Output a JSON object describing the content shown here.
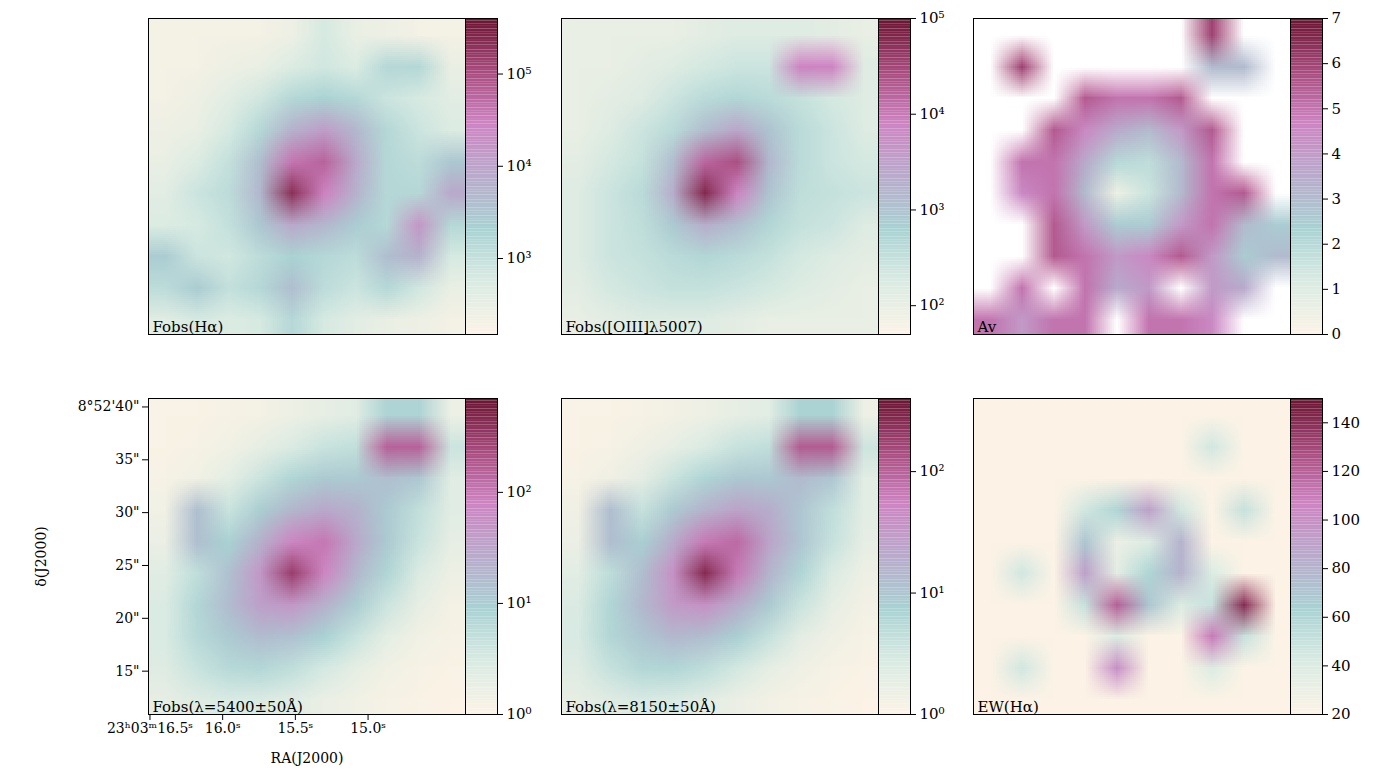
{
  "chart_data": [
    {
      "type": "heatmap",
      "title": "Fobs(Hα)",
      "log": true,
      "tick_labels": false,
      "xlim": [
        16.51,
        14.33
      ],
      "ylim": [
        10.9,
        40.8
      ],
      "clim": [
        150,
        400000
      ],
      "cticks": [
        {
          "value": 1000,
          "label": "10³"
        },
        {
          "value": 10000,
          "label": "10⁴"
        },
        {
          "value": 100000,
          "label": "10⁵"
        }
      ],
      "cells": [
        [
          200,
          200,
          200,
          200,
          250,
          600,
          300,
          250,
          200,
          200
        ],
        [
          200,
          200,
          250,
          300,
          500,
          700,
          500,
          1500,
          1500,
          300
        ],
        [
          200,
          250,
          400,
          700,
          1500,
          2000,
          1500,
          800,
          600,
          400
        ],
        [
          250,
          300,
          600,
          1500,
          6000,
          12000,
          5000,
          1500,
          800,
          500
        ],
        [
          300,
          500,
          1000,
          4000,
          40000,
          60000,
          8000,
          1500,
          1200,
          3000
        ],
        [
          400,
          800,
          1200,
          5000,
          200000,
          30000,
          6000,
          1500,
          1500,
          8000
        ],
        [
          500,
          600,
          1000,
          3000,
          8000,
          5000,
          2500,
          1500,
          15000,
          1500
        ],
        [
          2500,
          800,
          700,
          1200,
          2000,
          1500,
          1200,
          4000,
          6000,
          600
        ],
        [
          1200,
          2500,
          1000,
          1500,
          4000,
          1200,
          800,
          1500,
          700,
          300
        ],
        [
          400,
          600,
          500,
          600,
          1500,
          600,
          400,
          300,
          250,
          200
        ]
      ]
    },
    {
      "type": "heatmap",
      "title": "Fobs([OIII]λ5007)",
      "log": true,
      "tick_labels": false,
      "xlim": [
        16.51,
        14.33
      ],
      "ylim": [
        10.9,
        40.8
      ],
      "clim": [
        50,
        100000
      ],
      "cticks": [
        {
          "value": 100,
          "label": "10²"
        },
        {
          "value": 1000,
          "label": "10³"
        },
        {
          "value": 10000,
          "label": "10⁴"
        },
        {
          "value": 100000,
          "label": "10⁵"
        }
      ],
      "cells": [
        [
          100,
          100,
          100,
          100,
          120,
          150,
          150,
          150,
          120,
          100
        ],
        [
          100,
          100,
          120,
          150,
          200,
          250,
          250,
          8000,
          8000,
          150
        ],
        [
          100,
          120,
          150,
          250,
          400,
          500,
          400,
          300,
          200,
          150
        ],
        [
          100,
          150,
          250,
          400,
          1200,
          2500,
          1000,
          400,
          250,
          150
        ],
        [
          120,
          200,
          300,
          1200,
          15000,
          25000,
          1500,
          400,
          250,
          200
        ],
        [
          150,
          250,
          400,
          2000,
          60000,
          8000,
          1000,
          350,
          300,
          250
        ],
        [
          150,
          250,
          350,
          800,
          2000,
          1200,
          500,
          300,
          250,
          150
        ],
        [
          150,
          250,
          300,
          400,
          500,
          400,
          300,
          200,
          150,
          120
        ],
        [
          120,
          200,
          250,
          300,
          300,
          250,
          200,
          150,
          120,
          100
        ],
        [
          100,
          120,
          150,
          150,
          150,
          120,
          100,
          100,
          100,
          100
        ]
      ]
    },
    {
      "type": "heatmap",
      "title": "Av",
      "tick_labels": false,
      "xlim": [
        16.51,
        14.33
      ],
      "ylim": [
        10.9,
        40.8
      ],
      "clim": [
        0,
        7
      ],
      "cticks": [
        0,
        1,
        2,
        3,
        4,
        5,
        6,
        7
      ],
      "cells": [
        [
          null,
          null,
          null,
          null,
          null,
          null,
          null,
          6,
          null,
          null
        ],
        [
          null,
          6,
          null,
          null,
          null,
          null,
          null,
          3,
          3,
          null
        ],
        [
          null,
          null,
          null,
          5.5,
          5,
          5,
          5.5,
          null,
          null,
          null
        ],
        [
          null,
          null,
          5.5,
          4.5,
          3.5,
          3,
          4,
          5.5,
          null,
          null
        ],
        [
          null,
          5,
          5,
          3.5,
          2,
          1.8,
          3,
          5,
          null,
          null
        ],
        [
          null,
          4.5,
          5,
          3,
          0.5,
          1.5,
          3,
          5,
          5.5,
          null
        ],
        [
          null,
          null,
          5.5,
          4,
          2.5,
          2.5,
          4,
          5,
          3,
          2.5
        ],
        [
          null,
          null,
          5.5,
          5,
          4,
          4.5,
          5.5,
          4,
          2.5,
          3
        ],
        [
          null,
          5,
          null,
          5,
          3.5,
          4,
          null,
          4,
          3.5,
          null
        ],
        [
          5,
          4,
          5,
          5,
          null,
          5,
          5,
          4.5,
          null,
          null
        ]
      ]
    },
    {
      "type": "heatmap",
      "title": "Fobs(λ=5400±50Å)",
      "log": true,
      "x_label": "RA(J2000)",
      "y_label": "δ(J2000)",
      "xlim": [
        16.51,
        14.33
      ],
      "ylim": [
        10.9,
        40.8
      ],
      "xticks": [
        {
          "value": 16.5,
          "label": "23ʰ03ᵐ16.5ˢ"
        },
        {
          "value": 16.0,
          "label": "16.0ˢ"
        },
        {
          "value": 15.5,
          "label": "15.5ˢ"
        },
        {
          "value": 15.0,
          "label": "15.0ˢ"
        }
      ],
      "yticks": [
        {
          "value": 40,
          "label": "8°52'40\""
        },
        {
          "value": 35,
          "label": "35\""
        },
        {
          "value": 30,
          "label": "30\""
        },
        {
          "value": 25,
          "label": "25\""
        },
        {
          "value": 20,
          "label": "20\""
        },
        {
          "value": 15,
          "label": "15\""
        }
      ],
      "clim": [
        1,
        700
      ],
      "cticks": [
        {
          "value": 1,
          "label": "10⁰"
        },
        {
          "value": 10,
          "label": "10¹"
        },
        {
          "value": 100,
          "label": "10²"
        }
      ],
      "cells": [
        [
          1.1,
          1.1,
          1.2,
          1.3,
          1.6,
          1.9,
          2.3,
          8,
          8,
          1.6
        ],
        [
          1.1,
          1.2,
          1.4,
          1.9,
          2.8,
          4.3,
          5,
          150,
          150,
          4
        ],
        [
          1.2,
          1.4,
          2.1,
          4,
          7.5,
          11,
          11,
          15,
          12,
          2.3
        ],
        [
          1.4,
          15,
          4.3,
          10,
          19,
          28,
          22,
          11,
          5,
          2.3
        ],
        [
          1.7,
          15,
          9,
          22,
          75,
          100,
          28,
          11,
          4.3,
          1.9
        ],
        [
          2.3,
          5.3,
          14,
          45,
          300,
          75,
          19,
          7.5,
          2.8,
          1.6
        ],
        [
          2.8,
          7,
          16,
          35,
          45,
          22,
          10,
          4,
          1.9,
          1.3
        ],
        [
          3,
          6.5,
          11,
          16,
          14,
          9,
          4.3,
          2.1,
          1.4,
          1.2
        ],
        [
          2.5,
          4.3,
          6.5,
          7,
          5.3,
          3.3,
          2,
          1.4,
          1.2,
          1.1
        ],
        [
          1.9,
          2.5,
          3,
          2.8,
          2.3,
          1.7,
          1.4,
          1.2,
          1.1,
          1
        ]
      ]
    },
    {
      "type": "heatmap",
      "title": "Fobs(λ=8150±50Å)",
      "log": true,
      "tick_labels": false,
      "xlim": [
        16.51,
        14.33
      ],
      "ylim": [
        10.9,
        40.8
      ],
      "clim": [
        1,
        400
      ],
      "cticks": [
        {
          "value": 1,
          "label": "10⁰"
        },
        {
          "value": 10,
          "label": "10¹"
        },
        {
          "value": 100,
          "label": "10²"
        }
      ],
      "cells": [
        [
          1.1,
          1.1,
          1.2,
          1.3,
          1.5,
          1.8,
          2.1,
          7,
          7,
          1.5
        ],
        [
          1.1,
          1.2,
          1.4,
          1.8,
          2.6,
          3.9,
          4.5,
          110,
          110,
          3.5
        ],
        [
          1.2,
          1.4,
          2,
          3.7,
          6.5,
          9.5,
          9.5,
          13,
          10,
          2.1
        ],
        [
          1.4,
          12,
          4,
          9,
          16,
          24,
          19,
          10,
          4.5,
          2.1
        ],
        [
          1.6,
          12,
          8,
          19,
          65,
          85,
          24,
          10,
          4,
          1.8
        ],
        [
          2.1,
          4.8,
          12,
          38,
          260,
          65,
          16,
          6.5,
          2.6,
          1.5
        ],
        [
          2.6,
          6.3,
          14,
          30,
          38,
          19,
          9,
          3.7,
          1.8,
          1.3
        ],
        [
          2.8,
          6,
          10,
          14,
          12,
          8,
          4,
          2,
          1.4,
          1.2
        ],
        [
          2.3,
          4,
          6,
          6.3,
          4.8,
          3.1,
          1.9,
          1.4,
          1.2,
          1.1
        ],
        [
          1.8,
          2.3,
          2.8,
          2.6,
          2.1,
          1.6,
          1.3,
          1.2,
          1.1,
          1
        ]
      ]
    },
    {
      "type": "heatmap",
      "title": "EW(Hα)",
      "tick_labels": false,
      "xlim": [
        16.51,
        14.33
      ],
      "ylim": [
        10.9,
        40.8
      ],
      "clim": [
        20,
        150
      ],
      "cticks": [
        20,
        40,
        60,
        80,
        100,
        120,
        140
      ],
      "cells": [
        [
          20,
          20,
          20,
          20,
          20,
          20,
          20,
          20,
          20,
          20
        ],
        [
          20,
          20,
          20,
          20,
          20,
          20,
          20,
          45,
          20,
          20
        ],
        [
          20,
          20,
          20,
          20,
          20,
          20,
          20,
          20,
          20,
          20
        ],
        [
          20,
          20,
          20,
          45,
          60,
          90,
          45,
          20,
          50,
          20
        ],
        [
          20,
          20,
          20,
          70,
          30,
          40,
          80,
          20,
          20,
          20
        ],
        [
          20,
          45,
          20,
          90,
          35,
          60,
          80,
          40,
          20,
          20
        ],
        [
          20,
          20,
          20,
          50,
          120,
          70,
          40,
          50,
          140,
          20
        ],
        [
          20,
          20,
          20,
          20,
          40,
          20,
          20,
          110,
          50,
          20
        ],
        [
          20,
          45,
          20,
          20,
          100,
          20,
          20,
          40,
          20,
          20
        ],
        [
          20,
          20,
          20,
          20,
          20,
          20,
          20,
          20,
          20,
          20
        ]
      ]
    }
  ]
}
